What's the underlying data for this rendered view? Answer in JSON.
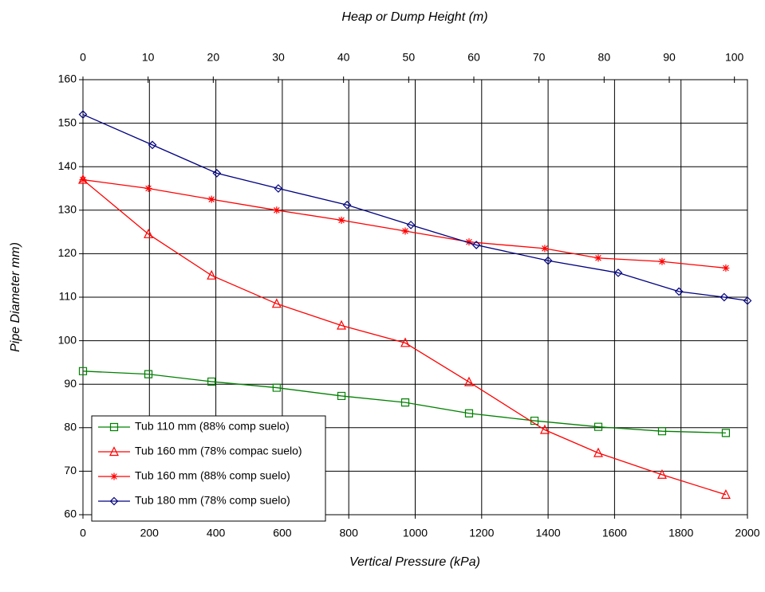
{
  "chart_data": {
    "type": "line",
    "x2label": "Heap or Dump Height (m)",
    "xlabel": "Vertical Pressure (kPa)",
    "ylabel": "Pipe Diameter mm)",
    "xlim": [
      0,
      2000
    ],
    "xticks": [
      0,
      200,
      400,
      600,
      800,
      1000,
      1200,
      1400,
      1600,
      1800,
      2000
    ],
    "x2lim": [
      0,
      102
    ],
    "x2ticks": [
      0,
      10,
      20,
      30,
      40,
      50,
      60,
      70,
      80,
      90,
      100
    ],
    "ylim": [
      60,
      160
    ],
    "yticks": [
      60,
      70,
      80,
      90,
      100,
      110,
      120,
      130,
      140,
      150,
      160
    ],
    "grid": true,
    "legend": "lower left",
    "series": [
      {
        "name": "Tub 110 mm (88% comp suelo)",
        "color": "#008000",
        "marker": "square",
        "x": [
          0,
          197,
          387,
          583,
          778,
          970,
          1162,
          1359,
          1551,
          1743,
          1935
        ],
        "values": [
          93,
          92.3,
          90.6,
          89.2,
          87.3,
          85.8,
          83.3,
          81.6,
          80.2,
          79.2,
          78.8
        ]
      },
      {
        "name": "Tub 160 mm (78% compac suelo)",
        "color": "#ff0000",
        "marker": "triangle",
        "x": [
          0,
          197,
          387,
          583,
          778,
          970,
          1162,
          1390,
          1551,
          1743,
          1935
        ],
        "values": [
          137,
          124.5,
          115,
          108.5,
          103.5,
          99.5,
          90.5,
          79.5,
          74.2,
          69.2,
          64.6
        ]
      },
      {
        "name": "Tub 160 mm (88% comp suelo)",
        "color": "#ff0000",
        "marker": "star",
        "x": [
          0,
          197,
          387,
          583,
          778,
          970,
          1162,
          1390,
          1551,
          1743,
          1935
        ],
        "values": [
          137,
          135,
          132.5,
          130,
          127.7,
          125.2,
          122.7,
          121.2,
          119,
          118.2,
          116.7
        ]
      },
      {
        "name": "Tub 180 mm (78% comp suelo)",
        "color": "#000080",
        "marker": "diamond",
        "x": [
          0,
          209,
          403,
          588,
          795,
          987,
          1184,
          1400,
          1611,
          1794,
          1930,
          2000
        ],
        "values": [
          152,
          145,
          138.5,
          135,
          131.2,
          126.6,
          122,
          118.4,
          115.6,
          111.3,
          110,
          109.2
        ]
      }
    ]
  }
}
